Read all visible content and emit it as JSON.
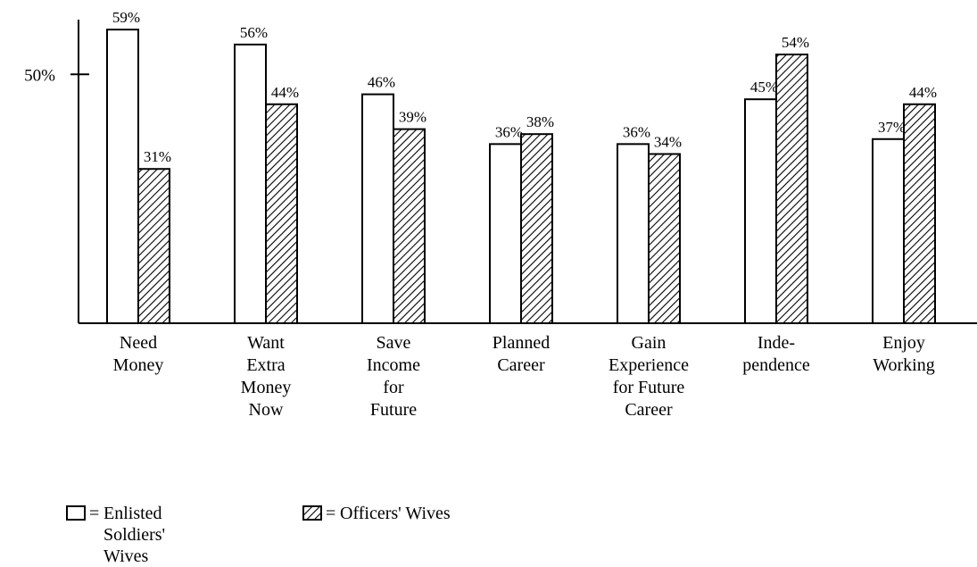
{
  "chart_data": {
    "type": "bar",
    "categories": [
      [
        "Need",
        "Money"
      ],
      [
        "Want",
        "Extra",
        "Money",
        "Now"
      ],
      [
        "Save",
        "Income",
        "for",
        "Future"
      ],
      [
        "Planned",
        "Career"
      ],
      [
        "Gain",
        "Experience",
        "for Future",
        "Career"
      ],
      [
        "Inde-",
        "pendence"
      ],
      [
        "Enjoy",
        "Working"
      ]
    ],
    "series": [
      {
        "name": "Enlisted Soldiers' Wives",
        "color": "#ffffff",
        "hatch": false,
        "values": [
          59,
          56,
          46,
          36,
          36,
          45,
          37
        ],
        "value_labels": [
          "59%",
          "56%",
          "46%",
          "36%",
          "36%",
          "45%",
          "37%"
        ]
      },
      {
        "name": "Officers' Wives",
        "color": "#ffffff",
        "hatch": true,
        "values": [
          31,
          44,
          39,
          38,
          34,
          54,
          44
        ],
        "value_labels": [
          "31%",
          "44%",
          "39%",
          "38%",
          "34%",
          "54%",
          "44%"
        ]
      }
    ],
    "legend_symbol": "=",
    "ylim": [
      0,
      61
    ],
    "yticks": [
      {
        "value": 50,
        "label": "50%"
      }
    ],
    "grid": false
  }
}
